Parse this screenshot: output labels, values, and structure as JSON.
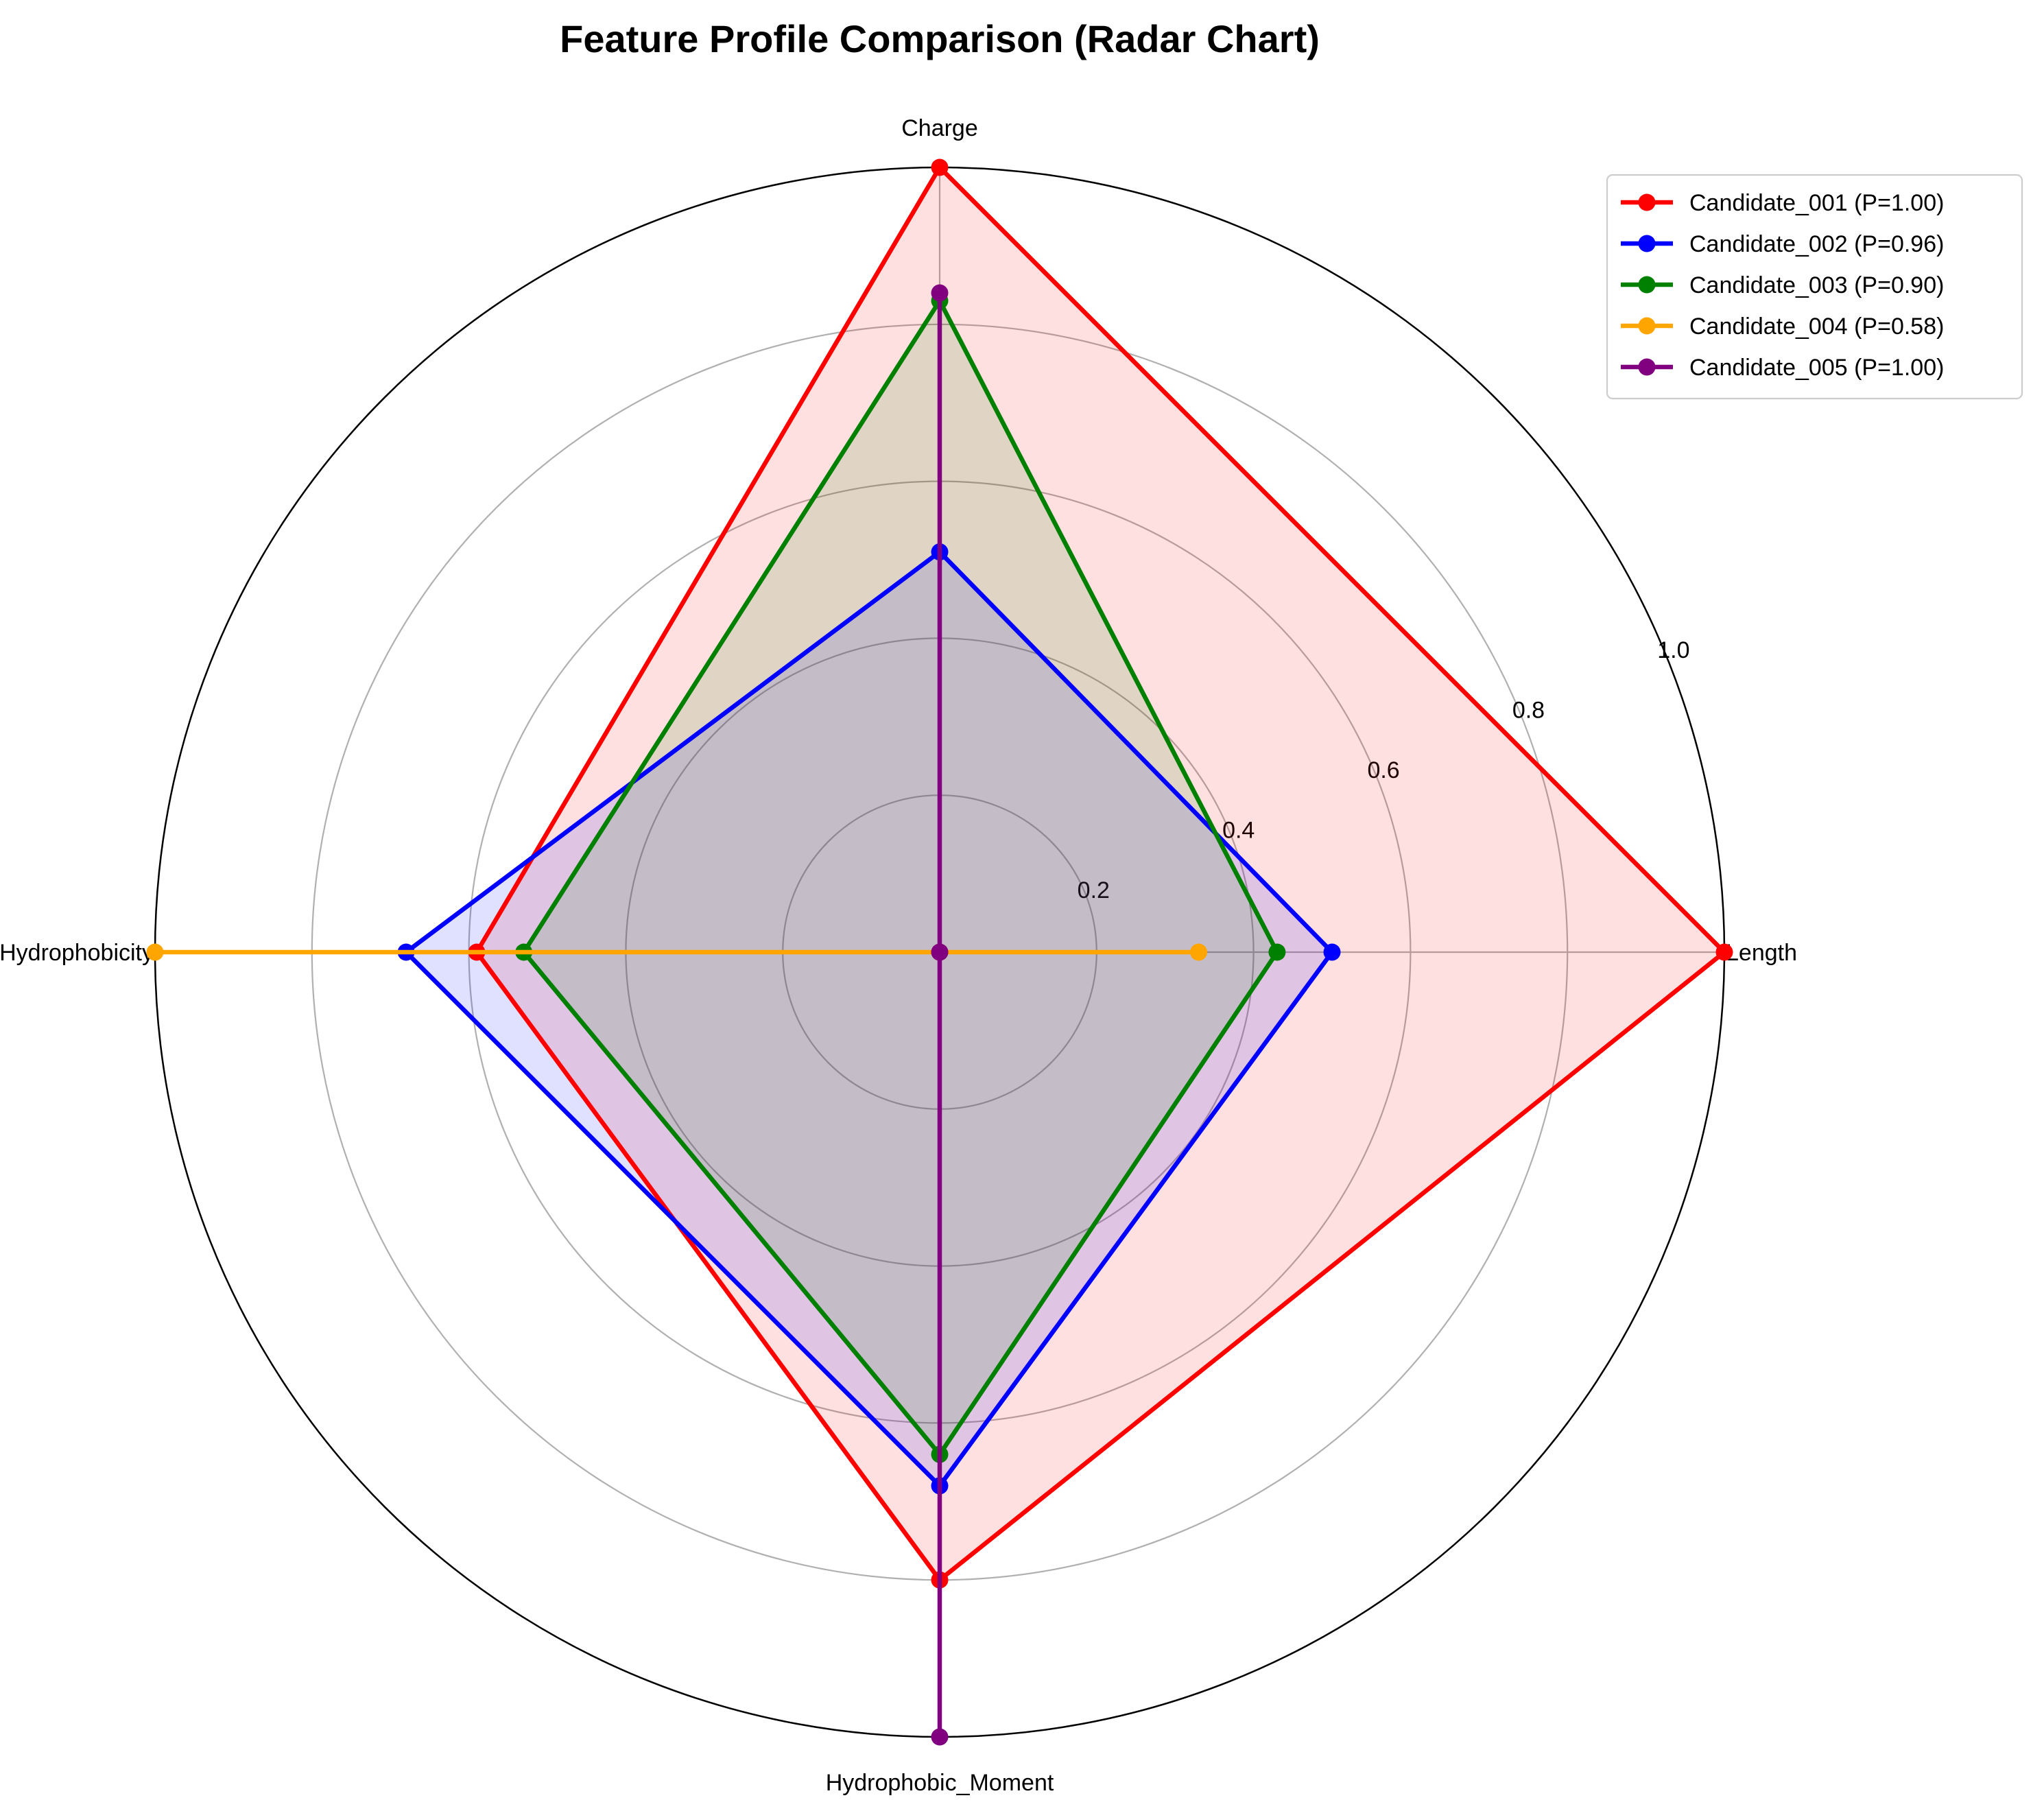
{
  "chart_data": {
    "type": "radar",
    "title": "Feature Profile Comparison (Radar Chart)",
    "axes": [
      "Length",
      "Charge",
      "Hydrophobicity",
      "Hydrophobic_Moment"
    ],
    "rlim": [
      0,
      1.0
    ],
    "radial_ticks": [
      0.2,
      0.4,
      0.6,
      0.8,
      1.0
    ],
    "radial_tick_labels": [
      "0.2",
      "0.4",
      "0.6",
      "0.8",
      "1.0"
    ],
    "grid": true,
    "legend_position": "top-right",
    "series": [
      {
        "name": "Candidate_001 (P=1.00)",
        "color": "#ff0000",
        "filled": true,
        "values": [
          1.0,
          1.0,
          0.59,
          0.8
        ]
      },
      {
        "name": "Candidate_002 (P=0.96)",
        "color": "#0000ff",
        "filled": true,
        "values": [
          0.5,
          0.51,
          0.68,
          0.68
        ]
      },
      {
        "name": "Candidate_003 (P=0.90)",
        "color": "#008000",
        "filled": true,
        "values": [
          0.43,
          0.83,
          0.53,
          0.64
        ]
      },
      {
        "name": "Candidate_004 (P=0.58)",
        "color": "#ffa500",
        "filled": false,
        "values": [
          0.33,
          0.0,
          1.0,
          0.0
        ]
      },
      {
        "name": "Candidate_005 (P=1.00)",
        "color": "#800080",
        "filled": true,
        "values": [
          0.0,
          0.84,
          0.0,
          1.0
        ]
      }
    ]
  }
}
